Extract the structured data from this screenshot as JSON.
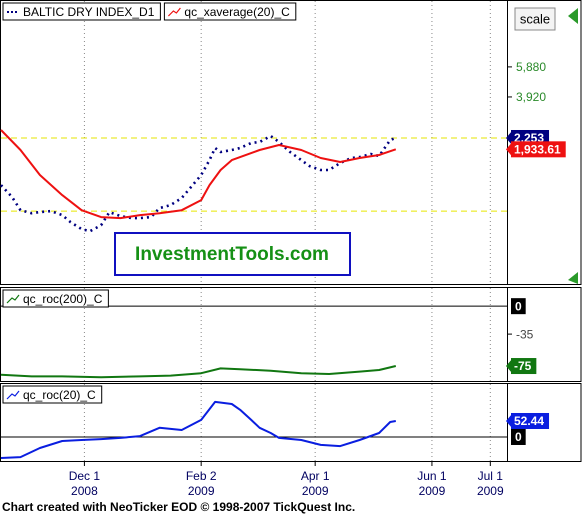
{
  "chart_data": [
    {
      "type": "line",
      "log_scale": true,
      "ylim": [
        310,
        14500
      ],
      "yticks": [
        {
          "value": 5880,
          "label": "5,880"
        },
        {
          "value": 3920,
          "label": "3,920"
        }
      ],
      "tick_color": "#2a8a2a",
      "reference_lines": [
        2253,
        840
      ],
      "reference_color": "#e6e600",
      "xlim": [
        0,
        182
      ],
      "series": [
        {
          "name": "BALTIC DRY INDEX_D1",
          "color": "#000080",
          "style": "dotted",
          "last_box": true,
          "x": [
            0,
            4,
            7,
            11,
            14,
            18,
            22,
            25,
            29,
            32,
            36,
            39,
            43,
            47,
            50,
            54,
            57,
            61,
            65,
            68,
            72,
            75,
            77,
            79,
            83,
            86,
            90,
            93,
            97,
            100,
            104,
            108,
            111,
            115,
            118,
            122,
            126,
            129,
            133,
            136,
            140,
            142
          ],
          "values": [
            1194,
            1015,
            851,
            817,
            829,
            840,
            796,
            724,
            659,
            641,
            695,
            829,
            785,
            764,
            764,
            775,
            875,
            911,
            1002,
            1146,
            1367,
            1673,
            1968,
            1864,
            1916,
            1968,
            2105,
            2134,
            2314,
            2134,
            1864,
            1673,
            1543,
            1462,
            1462,
            1607,
            1719,
            1742,
            1815,
            1766,
            2193,
            2253
          ],
          "value_labels": [
            null,
            null,
            null,
            null,
            null,
            null,
            null,
            null,
            null,
            null,
            null,
            null,
            null,
            null,
            null,
            null,
            null,
            null,
            null,
            null,
            null,
            null,
            null,
            null,
            null,
            null,
            null,
            null,
            null,
            null,
            null,
            null,
            null,
            null,
            null,
            null,
            null,
            null,
            null,
            null,
            null,
            "2,253"
          ]
        },
        {
          "name": "qc_xaverage(20)_C",
          "color": "#ee1111",
          "style": "solid",
          "last_box": true,
          "x": [
            0,
            7,
            14,
            22,
            29,
            36,
            43,
            50,
            57,
            65,
            72,
            75,
            79,
            83,
            86,
            93,
            100,
            108,
            115,
            122,
            129,
            136,
            142
          ],
          "values": [
            2510,
            1916,
            1367,
            1043,
            851,
            775,
            764,
            796,
            817,
            851,
            975,
            1194,
            1462,
            1673,
            1742,
            1916,
            2049,
            1916,
            1719,
            1629,
            1719,
            1790,
            1933.61
          ],
          "value_labels": [
            null,
            null,
            null,
            null,
            null,
            null,
            null,
            null,
            null,
            null,
            null,
            null,
            null,
            null,
            null,
            null,
            null,
            null,
            null,
            null,
            null,
            null,
            "1,933.61"
          ]
        }
      ]
    },
    {
      "type": "line",
      "ylim": [
        -95,
        24
      ],
      "yticks": [
        0,
        -35
      ],
      "zero_line": true,
      "tick_color": "#444444",
      "xlim": [
        0,
        182
      ],
      "series": [
        {
          "name": "qc_roc(200)_C",
          "color": "#117711",
          "style": "solid",
          "last_box": true,
          "x": [
            0,
            11,
            22,
            36,
            50,
            61,
            72,
            79,
            86,
            97,
            108,
            118,
            129,
            136,
            142
          ],
          "values": [
            -86,
            -88,
            -88,
            -89,
            -88,
            -87,
            -84,
            -78,
            -79,
            -81,
            -84,
            -85,
            -82,
            -80,
            -75
          ]
        }
      ]
    },
    {
      "type": "line",
      "ylim": [
        -82,
        177
      ],
      "yticks": [
        0
      ],
      "zero_line": true,
      "tick_color": "#444444",
      "xlim": [
        0,
        182
      ],
      "xticks": [
        {
          "value": 30,
          "label": "Dec 1",
          "year": "2008"
        },
        {
          "value": 72,
          "label": "Feb 2",
          "year": "2009"
        },
        {
          "value": 113,
          "label": "Apr 1",
          "year": "2009"
        },
        {
          "value": 155,
          "label": "Jun 1",
          "year": "2009"
        },
        {
          "value": 176,
          "label": "Jul 1",
          "year": "2009"
        }
      ],
      "series": [
        {
          "name": "qc_roc(20)_C",
          "color": "#0a1ee0",
          "style": "solid",
          "last_box": true,
          "x": [
            0,
            7,
            14,
            22,
            29,
            36,
            43,
            50,
            57,
            65,
            72,
            77,
            83,
            86,
            90,
            93,
            97,
            100,
            108,
            115,
            122,
            129,
            136,
            140,
            142
          ],
          "values": [
            -69,
            -66,
            -36,
            -13,
            -10,
            -7,
            -3,
            3,
            30,
            23,
            56,
            115,
            108,
            89,
            56,
            30,
            13,
            -3,
            -10,
            -26,
            -30,
            -10,
            13,
            49,
            52.44
          ]
        }
      ]
    }
  ],
  "watermark": "InvestmentTools.com",
  "scale_button": "scale",
  "footer": "Chart created with NeoTicker EOD © 1998-2007 TickQuest Inc."
}
